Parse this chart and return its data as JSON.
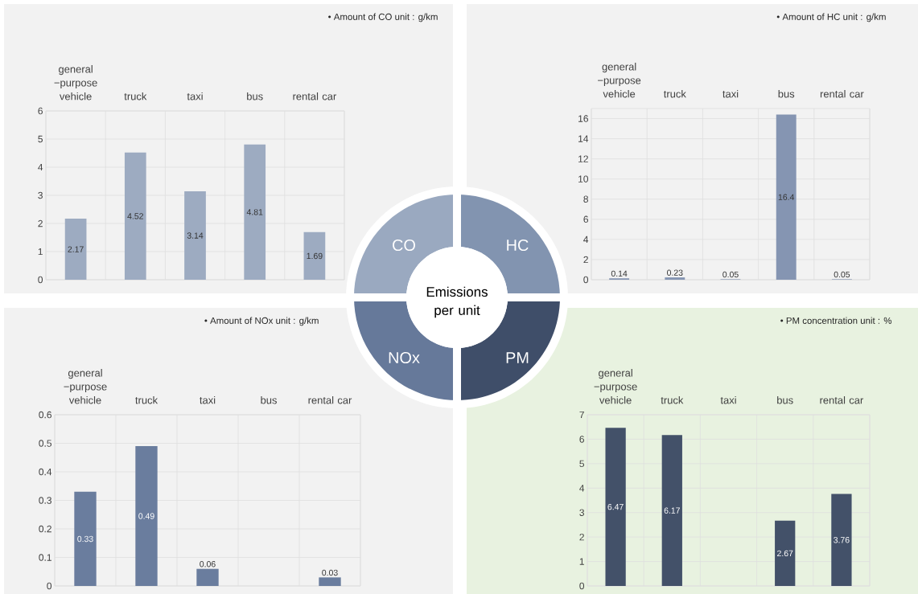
{
  "chart_data": [
    {
      "type": "bar",
      "title": "• Amount of CO unit : g/km",
      "categories": [
        "general −purpose vehicle",
        "truck",
        "taxi",
        "bus",
        "rental car"
      ],
      "values": [
        2.17,
        4.52,
        3.14,
        4.81,
        1.69
      ],
      "color": "#9dabc1",
      "ylim": [
        0,
        6
      ],
      "yticks": [
        0,
        1,
        2,
        3,
        4,
        5,
        6
      ],
      "grid": true,
      "data_labels": true
    },
    {
      "type": "bar",
      "title": "• Amount of HC unit : g/km",
      "categories": [
        "general −purpose vehicle",
        "truck",
        "taxi",
        "bus",
        "rental car"
      ],
      "values": [
        0.14,
        0.23,
        0.05,
        16.4,
        0.05
      ],
      "color": "#8595b2",
      "ylim": [
        0,
        17
      ],
      "yticks": [
        0,
        2,
        4,
        6,
        8,
        10,
        12,
        14,
        16
      ],
      "grid": true,
      "data_labels": true
    },
    {
      "type": "bar",
      "title": "• Amount of NOx unit : g/km",
      "categories": [
        "general −purpose vehicle",
        "truck",
        "taxi",
        "bus",
        "rental car"
      ],
      "values": [
        0.33,
        0.49,
        0.06,
        null,
        0.03
      ],
      "color": "#6a7d9e",
      "ylim": [
        0,
        0.6
      ],
      "yticks": [
        0,
        0.1,
        0.2,
        0.3,
        0.4,
        0.5,
        0.6
      ],
      "grid": true,
      "data_labels": true
    },
    {
      "type": "bar",
      "title": "• PM concentration unit : %",
      "categories": [
        "general −purpose vehicle",
        "truck",
        "taxi",
        "bus",
        "rental car"
      ],
      "values": [
        6.47,
        6.17,
        null,
        2.67,
        3.76
      ],
      "color": "#435169",
      "ylim": [
        0,
        7
      ],
      "yticks": [
        0,
        1,
        2,
        3,
        4,
        5,
        6,
        7
      ],
      "grid": true,
      "data_labels": true
    },
    {
      "type": "other",
      "title": "Emissions per unit",
      "annotations": [
        "CO",
        "HC",
        "NOx",
        "PM"
      ]
    }
  ]
}
